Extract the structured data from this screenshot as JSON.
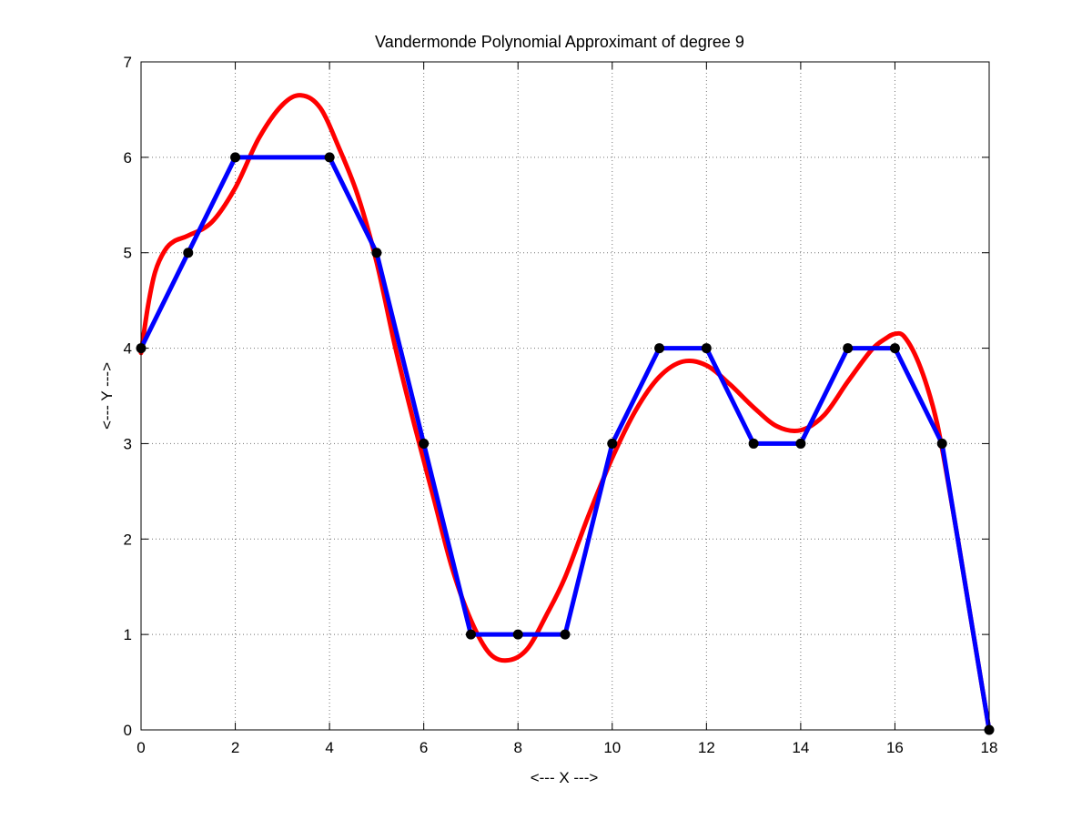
{
  "chart_data": {
    "type": "line",
    "title": "Vandermonde Polynomial Approximant of degree 9",
    "xlabel": "<--- X --->",
    "ylabel": "<--- Y --->",
    "xlim": [
      0,
      18
    ],
    "ylim": [
      0,
      7
    ],
    "xticks": [
      0,
      2,
      4,
      6,
      8,
      10,
      12,
      14,
      16,
      18
    ],
    "yticks": [
      0,
      1,
      2,
      3,
      4,
      5,
      6,
      7
    ],
    "grid": true,
    "legend": "none",
    "series": [
      {
        "color": "#ff0000",
        "style": "smooth",
        "x": [
          0,
          0.15,
          0.3,
          0.5,
          0.7,
          1.0,
          1.5,
          2.0,
          2.5,
          3.0,
          3.4,
          3.8,
          4.2,
          4.6,
          5.0,
          5.4,
          5.8,
          6.2,
          6.6,
          7.0,
          7.4,
          7.8,
          8.2,
          8.6,
          9.0,
          9.5,
          10.0,
          10.5,
          11.0,
          11.5,
          12.0,
          12.5,
          13.0,
          13.5,
          14.0,
          14.5,
          15.0,
          15.5,
          15.8,
          16.0,
          16.2,
          16.5,
          16.8,
          17.0,
          17.3,
          17.6,
          18.0
        ],
        "y": [
          3.95,
          4.45,
          4.8,
          5.02,
          5.12,
          5.18,
          5.32,
          5.68,
          6.2,
          6.55,
          6.65,
          6.52,
          6.1,
          5.6,
          4.9,
          4.0,
          3.2,
          2.45,
          1.7,
          1.15,
          0.8,
          0.73,
          0.85,
          1.2,
          1.6,
          2.25,
          2.85,
          3.35,
          3.7,
          3.86,
          3.82,
          3.62,
          3.38,
          3.18,
          3.14,
          3.3,
          3.65,
          3.98,
          4.1,
          4.15,
          4.12,
          3.85,
          3.4,
          2.95,
          2.1,
          1.2,
          0.0
        ]
      },
      {
        "color": "#0000ff",
        "style": "linear",
        "x": [
          0,
          1,
          2,
          3,
          4,
          5,
          6,
          7,
          8,
          9,
          10,
          11,
          12,
          13,
          14,
          15,
          16,
          17,
          18
        ],
        "y": [
          4,
          5,
          6,
          6,
          6,
          5,
          3,
          1,
          1,
          1,
          3,
          4,
          4,
          3,
          3,
          4,
          4,
          3,
          0
        ]
      }
    ],
    "markers": {
      "color": "#000000",
      "x": [
        0,
        1,
        2,
        4,
        5,
        6,
        7,
        8,
        9,
        10,
        11,
        12,
        13,
        14,
        15,
        16,
        17,
        18
      ],
      "y": [
        4,
        5,
        6,
        6,
        5,
        3,
        1,
        1,
        1,
        3,
        4,
        4,
        3,
        3,
        4,
        4,
        3,
        0
      ]
    }
  }
}
